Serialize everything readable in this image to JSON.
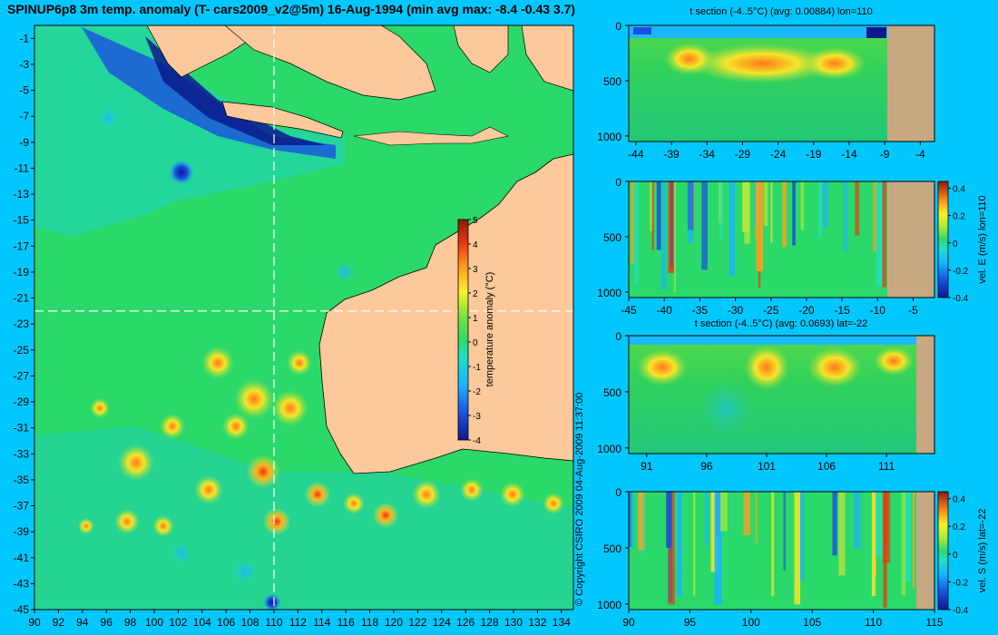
{
  "title": "SPINUP6p8 3m temp. anomaly (T- cars2009_v2@5m) 16-Aug-1994 (min avg max: -8.4 -0.43 3.7)",
  "copyright": "© Copyright CSIRO 2009   04-Aug-2009 11:37:00",
  "colors": {
    "background": "#00c8ff",
    "land": "#fdc99a",
    "section_land": "#c8a882",
    "ocean_base": "#2bd96a"
  },
  "chart_data": [
    {
      "type": "heatmap",
      "name": "map",
      "xlim": [
        90,
        135
      ],
      "ylim": [
        -45,
        0
      ],
      "x_ticks": [
        "90",
        "92",
        "94",
        "96",
        "98",
        "100",
        "102",
        "104",
        "106",
        "108",
        "110",
        "112",
        "114",
        "116",
        "118",
        "120",
        "122",
        "124",
        "126",
        "128",
        "130",
        "132",
        "134"
      ],
      "y_ticks": [
        "-1",
        "-3",
        "-5",
        "-7",
        "-9",
        "-11",
        "-13",
        "-15",
        "-17",
        "-19",
        "-21",
        "-23",
        "-25",
        "-27",
        "-29",
        "-31",
        "-33",
        "-35",
        "-37",
        "-39",
        "-41",
        "-43",
        "-45"
      ],
      "crosshair": {
        "lon": 110,
        "lat": -22
      },
      "colorbar": {
        "label": "temperature anomaly (°C)",
        "range": [
          -4,
          5
        ],
        "ticks": [
          "5",
          "4",
          "3",
          "2",
          "1",
          "0",
          "-1",
          "-2",
          "-3",
          "-4"
        ]
      }
    },
    {
      "type": "heatmap",
      "name": "t-section-lon110",
      "title": "t section (-4..5°C) (avg: 0.00884) lon=110",
      "xlim": [
        -45,
        -2
      ],
      "ylim": [
        1050,
        0
      ],
      "x_ticks": [
        "-44",
        "-39",
        "-34",
        "-29",
        "-24",
        "-19",
        "-14",
        "-9",
        "-4"
      ],
      "y_ticks": [
        "0",
        "500",
        "1000"
      ],
      "land_from": -8.3
    },
    {
      "type": "heatmap",
      "name": "vel-e-section-lon110",
      "title": "",
      "xlim": [
        -45,
        -2
      ],
      "ylim": [
        1050,
        0
      ],
      "x_ticks": [
        "-45",
        "-40",
        "-35",
        "-30",
        "-25",
        "-20",
        "-15",
        "-10",
        "-5"
      ],
      "y_ticks": [
        "0",
        "500",
        "1000"
      ],
      "land_from": -8.3,
      "colorbar": {
        "label": "vel. E (m/s) lon=110",
        "range": [
          -0.4,
          0.45
        ],
        "ticks": [
          "0.4",
          "0.2",
          "0",
          "-0.2",
          "-0.4"
        ]
      }
    },
    {
      "type": "heatmap",
      "name": "t-section-lat-22",
      "title": "t section (-4..5°C) (avg: 0.0693) lat=-22",
      "xlim": [
        89.5,
        115
      ],
      "ylim": [
        1050,
        0
      ],
      "x_ticks": [
        "91",
        "96",
        "101",
        "106",
        "111"
      ],
      "y_ticks": [
        "0",
        "500",
        "1000"
      ],
      "land_from": 113.8
    },
    {
      "type": "heatmap",
      "name": "vel-s-section-lat-22",
      "title": "",
      "xlim": [
        90,
        115
      ],
      "ylim": [
        1050,
        0
      ],
      "x_ticks": [
        "90",
        "95",
        "100",
        "105",
        "110",
        "115"
      ],
      "y_ticks": [
        "0",
        "500",
        "1000"
      ],
      "land_from": 113.8,
      "colorbar": {
        "label": "vel. S (m/s) lat=-22",
        "range": [
          -0.4,
          0.45
        ],
        "ticks": [
          "0.4",
          "0.2",
          "0",
          "-0.2",
          "-0.4"
        ]
      }
    }
  ]
}
